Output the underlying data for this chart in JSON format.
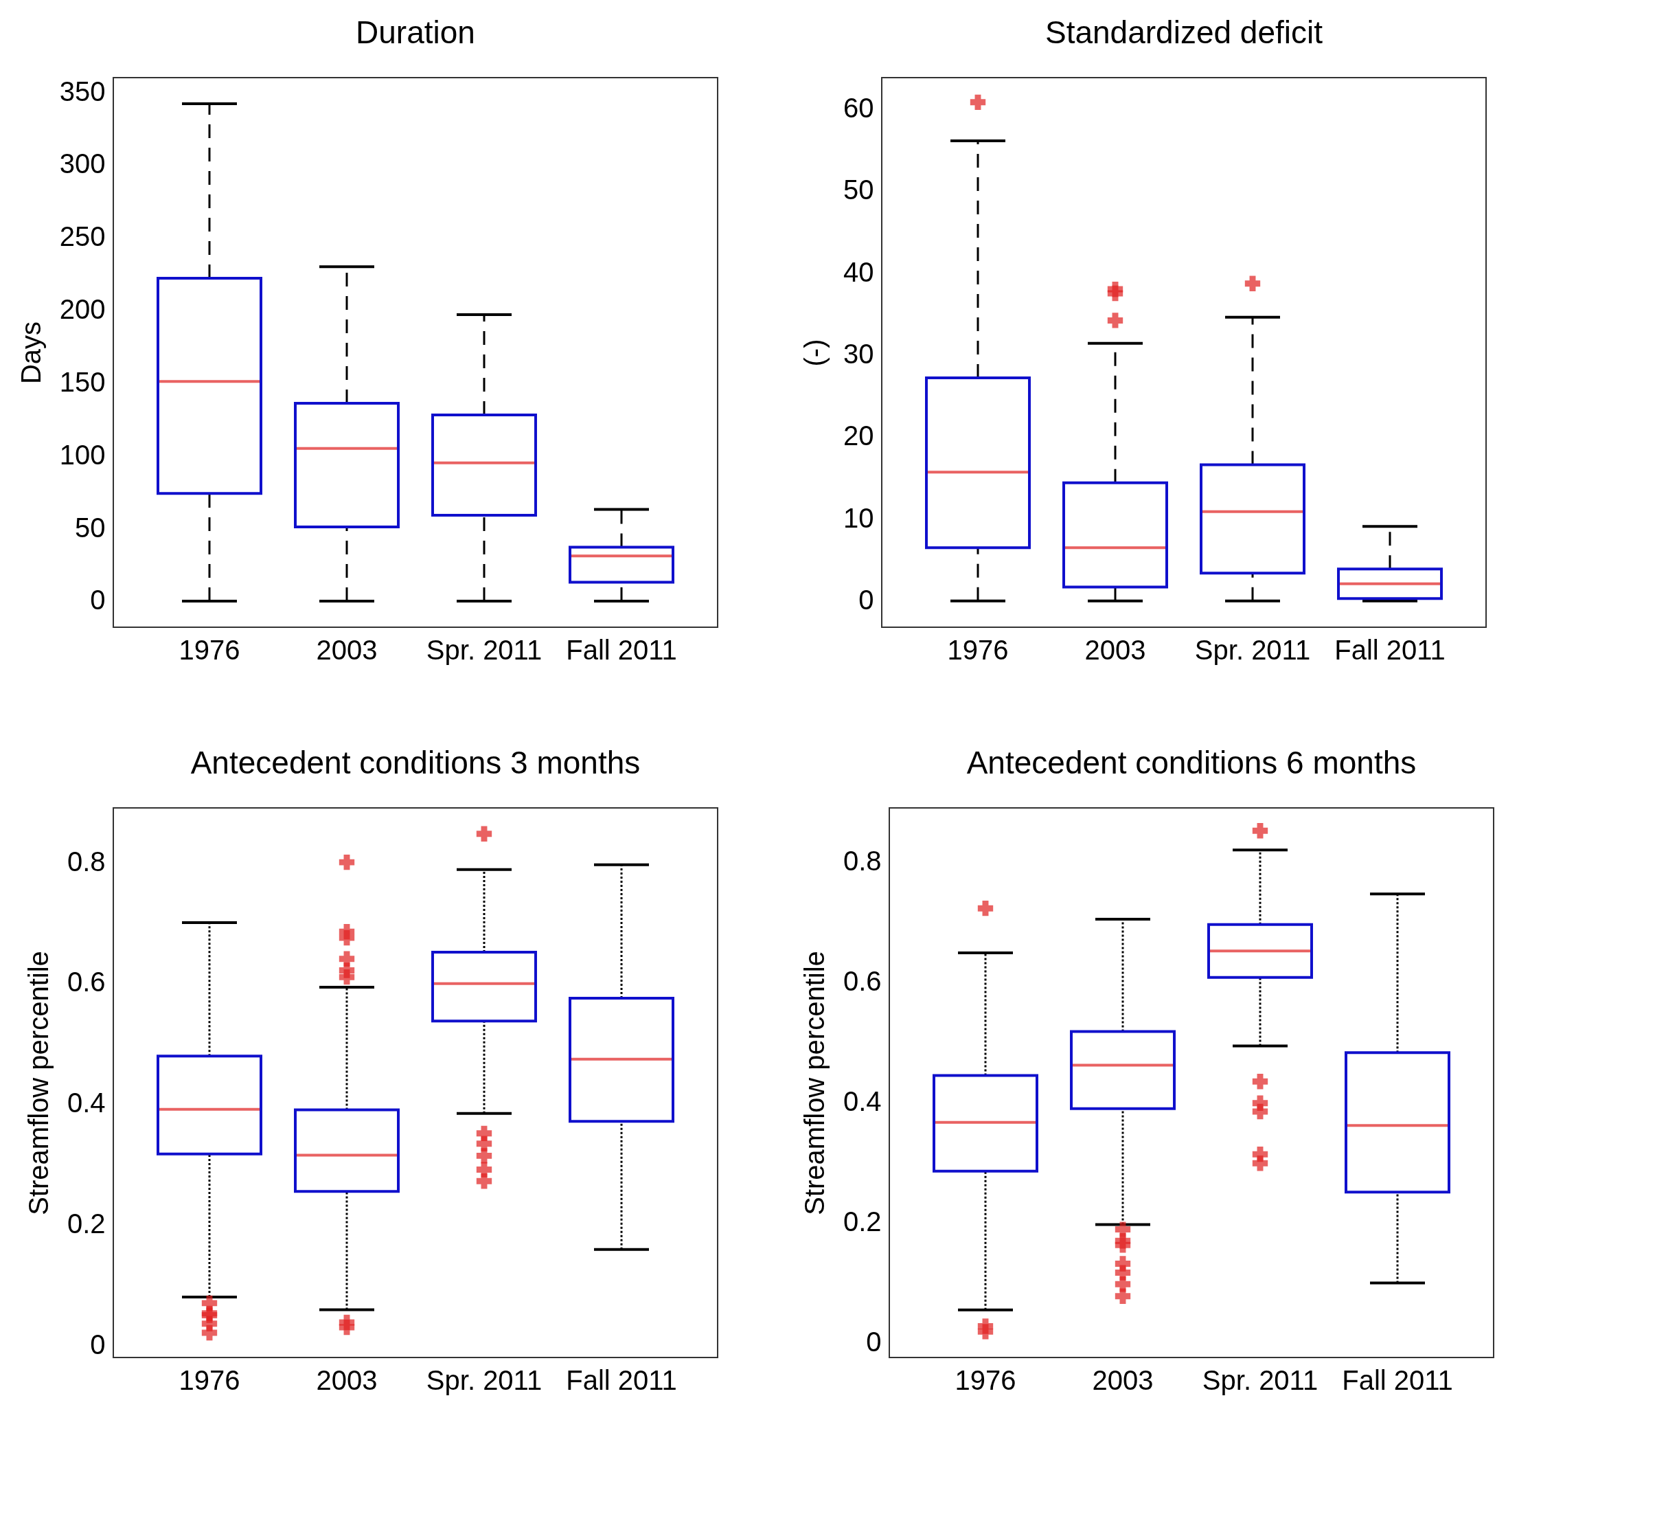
{
  "chart_data": [
    {
      "type": "box",
      "title": "Duration",
      "ylabel": "Days",
      "categories": [
        "1976",
        "2003",
        "Spr. 2011",
        "Fall 2011"
      ],
      "ylim": [
        -18,
        360
      ],
      "yticks": [
        0,
        50,
        100,
        150,
        200,
        250,
        300,
        350
      ],
      "line_style": "dashed",
      "grid": false,
      "boxes": [
        {
          "low": 0,
          "q1": 74,
          "median": 151,
          "q3": 222,
          "high": 342
        },
        {
          "low": 0,
          "q1": 51,
          "median": 105,
          "q3": 136,
          "high": 230
        },
        {
          "low": 0,
          "q1": 59,
          "median": 95,
          "q3": 128,
          "high": 197
        },
        {
          "low": 0,
          "q1": 13,
          "median": 31,
          "q3": 37,
          "high": 63
        }
      ]
    },
    {
      "type": "box",
      "title": "Standardized deficit",
      "ylabel": "(-)",
      "categories": [
        "1976",
        "2003",
        "Spr. 2011",
        "Fall 2011"
      ],
      "ylim": [
        -3.2,
        63.8
      ],
      "yticks": [
        0,
        10,
        20,
        30,
        40,
        50,
        60
      ],
      "line_style": "dashed",
      "grid": false,
      "boxes": [
        {
          "low": 0,
          "q1": 6.5,
          "median": 15.7,
          "q3": 27.2,
          "high": 56.1,
          "outliers": [
            60.8
          ]
        },
        {
          "low": 0,
          "q1": 1.7,
          "median": 6.5,
          "q3": 14.4,
          "high": 31.4,
          "outliers": [
            38.0,
            37.5,
            34.2
          ]
        },
        {
          "low": 0,
          "q1": 3.4,
          "median": 10.9,
          "q3": 16.6,
          "high": 34.6,
          "outliers": [
            38.7
          ]
        },
        {
          "low": 0,
          "q1": 0.3,
          "median": 2.1,
          "q3": 3.9,
          "high": 9.1
        }
      ]
    },
    {
      "type": "box",
      "title": "Antecedent conditions 3 months",
      "ylabel": "Streamflow percentile",
      "categories": [
        "1976",
        "2003",
        "Spr. 2011",
        "Fall 2011"
      ],
      "ylim": [
        -0.02,
        0.89
      ],
      "yticks": [
        0,
        0.2,
        0.4,
        0.6,
        0.8
      ],
      "line_style": "dotted",
      "grid": false,
      "boxes": [
        {
          "low": 0.08,
          "q1": 0.317,
          "median": 0.391,
          "q3": 0.479,
          "high": 0.7,
          "outliers": [
            0.07,
            0.053,
            0.05,
            0.036,
            0.021
          ]
        },
        {
          "low": 0.059,
          "q1": 0.255,
          "median": 0.315,
          "q3": 0.39,
          "high": 0.593,
          "outliers": [
            0.8,
            0.685,
            0.675,
            0.64,
            0.621,
            0.61,
            0.038,
            0.03
          ]
        },
        {
          "low": 0.384,
          "q1": 0.537,
          "median": 0.599,
          "q3": 0.651,
          "high": 0.788,
          "outliers": [
            0.847,
            0.351,
            0.334,
            0.314,
            0.291,
            0.272
          ]
        },
        {
          "low": 0.159,
          "q1": 0.371,
          "median": 0.474,
          "q3": 0.575,
          "high": 0.796
        }
      ]
    },
    {
      "type": "box",
      "title": "Antecedent conditions 6 months",
      "ylabel": "Streamflow percentile",
      "categories": [
        "1976",
        "2003",
        "Spr. 2011",
        "Fall 2011"
      ],
      "ylim": [
        -0.024,
        0.89
      ],
      "yticks": [
        0,
        0.2,
        0.4,
        0.6,
        0.8
      ],
      "line_style": "dotted",
      "grid": false,
      "boxes": [
        {
          "low": 0.055,
          "q1": 0.286,
          "median": 0.367,
          "q3": 0.445,
          "high": 0.649,
          "outliers": [
            0.723,
            0.028,
            0.019
          ]
        },
        {
          "low": 0.197,
          "q1": 0.39,
          "median": 0.462,
          "q3": 0.518,
          "high": 0.705,
          "outliers": [
            0.189,
            0.17,
            0.163,
            0.132,
            0.117,
            0.098,
            0.078
          ]
        },
        {
          "low": 0.494,
          "q1": 0.608,
          "median": 0.652,
          "q3": 0.696,
          "high": 0.82,
          "outliers": [
            0.852,
            0.435,
            0.399,
            0.385,
            0.314,
            0.299
          ]
        },
        {
          "low": 0.1,
          "q1": 0.251,
          "median": 0.362,
          "q3": 0.483,
          "high": 0.747
        }
      ]
    }
  ]
}
